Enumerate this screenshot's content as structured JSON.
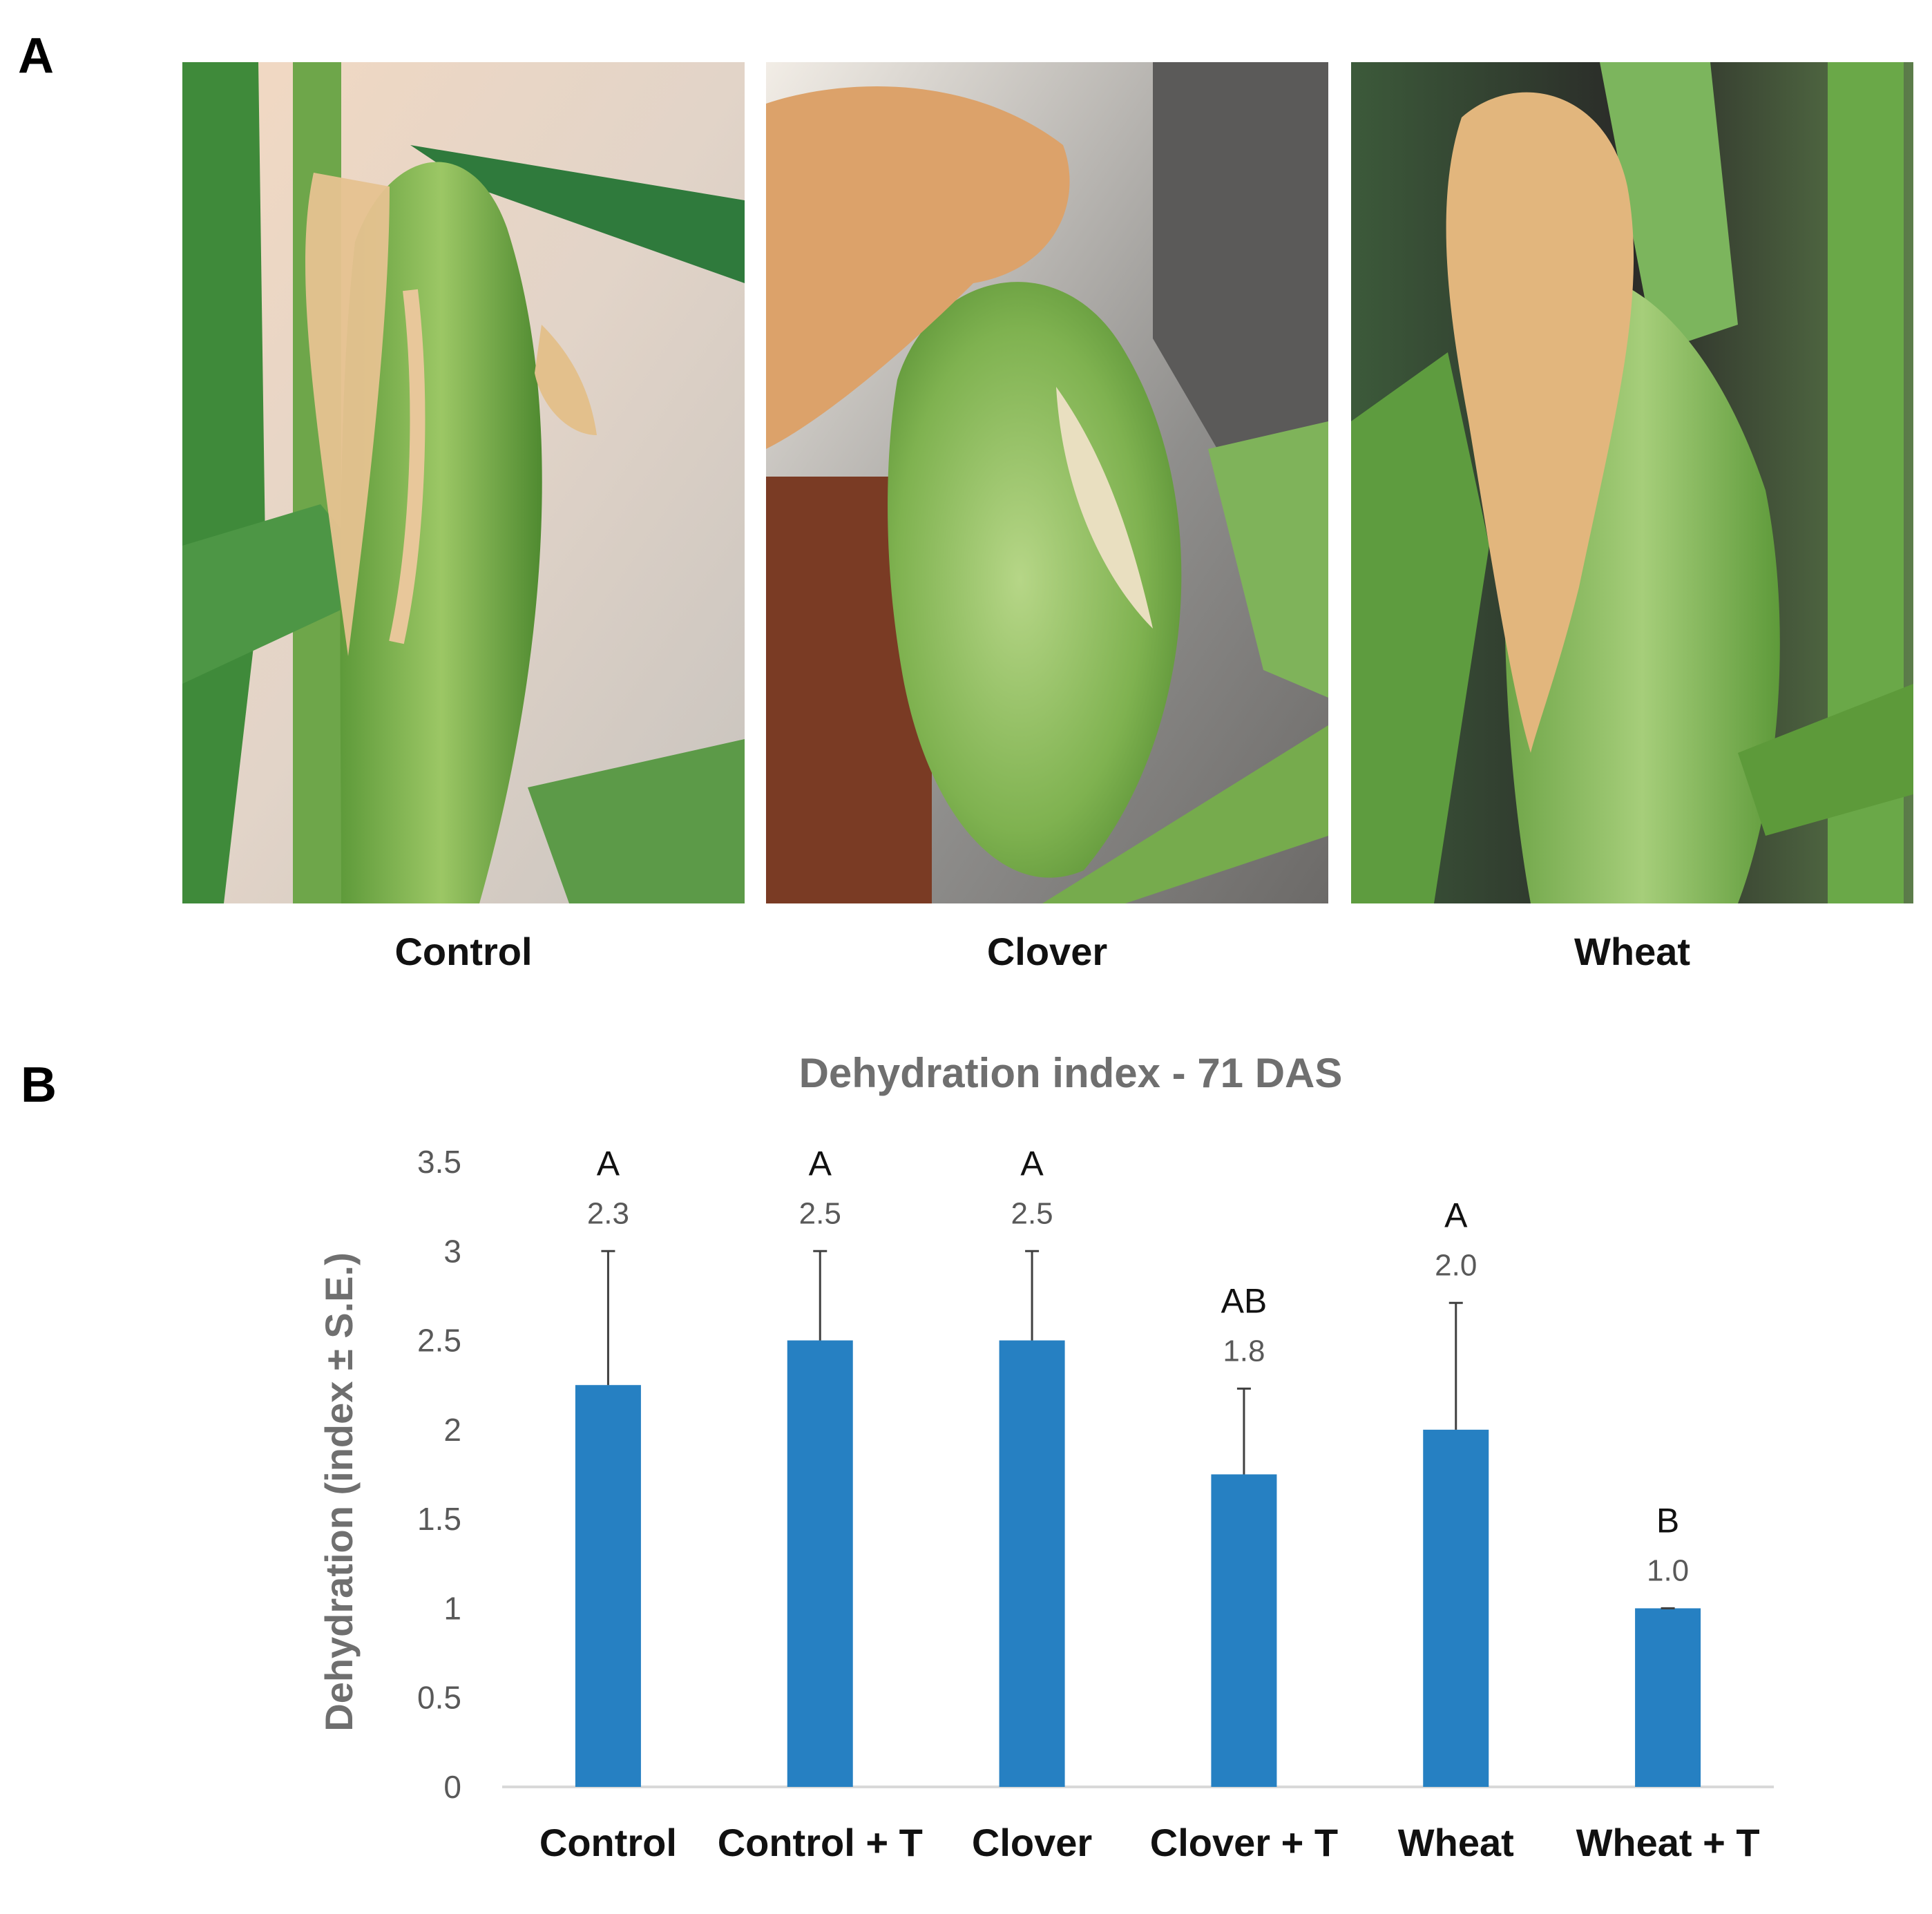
{
  "panels": {
    "a_label": "A",
    "b_label": "B"
  },
  "photos": [
    {
      "caption": "Control"
    },
    {
      "caption": "Clover"
    },
    {
      "caption": "Wheat"
    }
  ],
  "colors": {
    "bar": "#2680C2",
    "axis": "#D9D9D9",
    "error_bar": "#404040",
    "title": "#6F6F6F",
    "tick": "#595959"
  },
  "chart_data": {
    "type": "bar",
    "title": "Dehydration index - 71 DAS",
    "xlabel": "",
    "ylabel": "Dehydration (index ± S.E.)",
    "ylim": [
      0,
      3.5
    ],
    "yticks": [
      "0",
      "0.5",
      "1",
      "1.5",
      "2",
      "2.5",
      "3",
      "3.5"
    ],
    "ytick_values": [
      0,
      0.5,
      1,
      1.5,
      2,
      2.5,
      3,
      3.5
    ],
    "categories": [
      "Control",
      "Control + T",
      "Clover",
      "Clover + T",
      "Wheat",
      "Wheat + T"
    ],
    "values": [
      2.25,
      2.5,
      2.5,
      1.75,
      2.0,
      1.0
    ],
    "errors": [
      0.75,
      0.5,
      0.5,
      0.48,
      0.71,
      0.0
    ],
    "value_labels": [
      "2.3",
      "2.5",
      "2.5",
      "1.8",
      "2.0",
      "1.0"
    ],
    "group_letters": [
      "A",
      "A",
      "A",
      "AB",
      "A",
      "B"
    ],
    "grid": false,
    "legend": "none"
  }
}
